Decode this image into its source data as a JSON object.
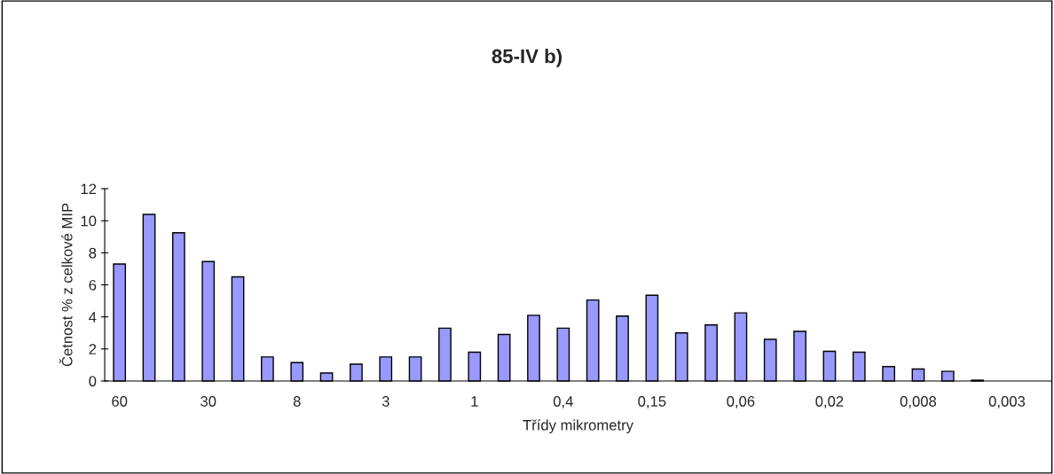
{
  "chart_data": {
    "type": "bar",
    "title": "85-IV b)",
    "xlabel": "Třídy mikrometry",
    "ylabel": "Četnost % z celkové MIP",
    "categories": [
      "60",
      null,
      null,
      "30",
      null,
      null,
      "8",
      null,
      null,
      "3",
      null,
      null,
      "1",
      null,
      null,
      "0,4",
      null,
      null,
      "0,15",
      null,
      null,
      "0,06",
      null,
      null,
      "0,02",
      null,
      null,
      "0,008",
      null,
      null,
      "0,003",
      null
    ],
    "values": [
      7.3,
      10.4,
      9.25,
      7.45,
      6.5,
      1.5,
      1.15,
      0.5,
      1.05,
      1.5,
      1.5,
      3.3,
      1.8,
      2.9,
      4.1,
      3.3,
      5.05,
      4.05,
      5.35,
      3.0,
      3.5,
      4.25,
      2.6,
      3.1,
      1.85,
      1.8,
      0.9,
      0.75,
      0.6,
      0.05,
      null,
      null
    ],
    "color": "#9999ff",
    "ylim": [
      0,
      12
    ],
    "yticks": [
      0,
      2,
      4,
      6,
      8,
      10,
      12
    ],
    "grid": false,
    "legend": false
  }
}
